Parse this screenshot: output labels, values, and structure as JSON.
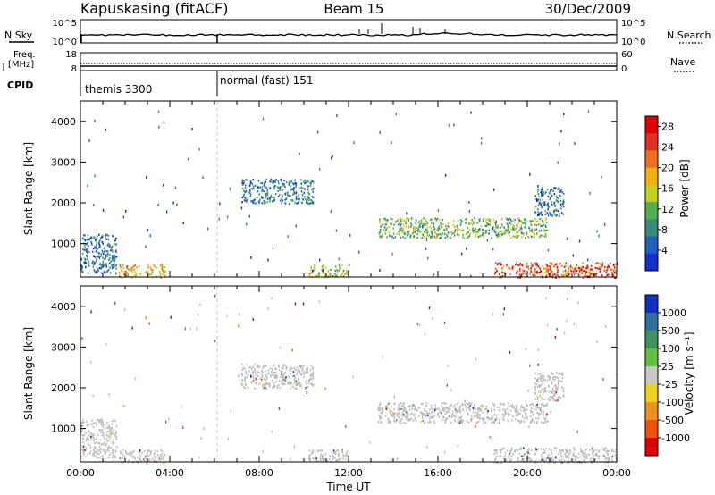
{
  "header": {
    "station": "Kapuskasing (fitACF)",
    "beam": "Beam 15",
    "date": "30/Dec/2009"
  },
  "labels": {
    "nsky": "N.Sky",
    "nsearch": "N.Search",
    "freq_line1": "Freq.",
    "freq_line2": "[MHz]",
    "nave": "Nave",
    "cpid": "CPID",
    "slant_range": "Slant Range [km]",
    "time_axis": "Time UT",
    "power_bar": "Power [dB]",
    "velocity_bar": "Velocity [m s⁻¹]"
  },
  "noise_panel": {
    "left_ticks": [
      "10^5",
      "10^0"
    ],
    "right_ticks": [
      "10^5",
      "10^0"
    ]
  },
  "freq_panel": {
    "left_ticks": [
      "18",
      "8"
    ],
    "right_ticks": [
      "60",
      "0"
    ]
  },
  "cpid_panel": {
    "segments": [
      {
        "label": "themis 3300",
        "start_hour": 0
      },
      {
        "label": "normal (fast) 151",
        "start_hour": 6
      }
    ]
  },
  "colors": {
    "power_scale": [
      "#1030d0",
      "#2060c0",
      "#3a8a7a",
      "#50b050",
      "#c0d020",
      "#f0b010",
      "#f07020",
      "#e03020",
      "#e00000"
    ],
    "velocity_scale": [
      "#1030c0",
      "#3070a0",
      "#409060",
      "#60c040",
      "#c8c8c8",
      "#f0d020",
      "#f09020",
      "#f05010",
      "#e00000"
    ],
    "ground_scatter": "#bdbdbd"
  },
  "chart_data": [
    {
      "type": "heatmap",
      "name": "power",
      "ylabel": "Slant Range [km]",
      "xlabel": "",
      "x_range_hours": [
        0,
        24
      ],
      "ylim": [
        180,
        4500
      ],
      "x_ticks": [
        "00:00",
        "04:00",
        "08:00",
        "12:00",
        "16:00",
        "20:00",
        "00:00"
      ],
      "y_ticks": [
        1000,
        2000,
        3000,
        4000
      ],
      "colorbar": {
        "label": "Power [dB]",
        "ticks": [
          4,
          8,
          12,
          16,
          20,
          24,
          28
        ],
        "range": [
          0,
          30
        ]
      },
      "scatter_regions": [
        {
          "hours": [
            0,
            1.6
          ],
          "range_km": [
            300,
            1250
          ],
          "power_db": 6
        },
        {
          "hours": [
            1.7,
            3.8
          ],
          "range_km": [
            180,
            500
          ],
          "power_db": 18
        },
        {
          "hours": [
            7.2,
            10.4
          ],
          "range_km": [
            2000,
            2600
          ],
          "power_db": 7
        },
        {
          "hours": [
            10.2,
            12.0
          ],
          "range_km": [
            200,
            500
          ],
          "power_db": 14
        },
        {
          "hours": [
            13.3,
            20.9
          ],
          "range_km": [
            1150,
            1650
          ],
          "power_db": 12
        },
        {
          "hours": [
            18.5,
            24.0
          ],
          "range_km": [
            180,
            550
          ],
          "power_db": 24
        },
        {
          "hours": [
            20.3,
            21.6
          ],
          "range_km": [
            1700,
            2400
          ],
          "power_db": 6
        }
      ]
    },
    {
      "type": "heatmap",
      "name": "velocity",
      "ylabel": "Slant Range [km]",
      "xlabel": "Time UT",
      "x_range_hours": [
        0,
        24
      ],
      "ylim": [
        180,
        4500
      ],
      "x_ticks": [
        "00:00",
        "04:00",
        "08:00",
        "12:00",
        "16:00",
        "20:00",
        "00:00"
      ],
      "y_ticks": [
        1000,
        2000,
        3000,
        4000
      ],
      "colorbar": {
        "label": "Velocity [m s⁻¹]",
        "ticks": [
          "1000",
          "500",
          "100",
          "25",
          "-25",
          "-100",
          "-500",
          "-1000"
        ]
      },
      "scatter_regions": [
        {
          "hours": [
            0,
            1.6
          ],
          "range_km": [
            300,
            1250
          ],
          "velocity": 0
        },
        {
          "hours": [
            1.7,
            3.8
          ],
          "range_km": [
            180,
            500
          ],
          "velocity": 0
        },
        {
          "hours": [
            7.2,
            10.4
          ],
          "range_km": [
            2000,
            2600
          ],
          "velocity": 0
        },
        {
          "hours": [
            10.2,
            12.0
          ],
          "range_km": [
            200,
            500
          ],
          "velocity": 0
        },
        {
          "hours": [
            13.3,
            20.9
          ],
          "range_km": [
            1150,
            1650
          ],
          "velocity": 0
        },
        {
          "hours": [
            18.5,
            24.0
          ],
          "range_km": [
            180,
            550
          ],
          "velocity": 0
        },
        {
          "hours": [
            20.3,
            21.6
          ],
          "range_km": [
            1700,
            2400
          ],
          "velocity": 0
        }
      ]
    }
  ]
}
